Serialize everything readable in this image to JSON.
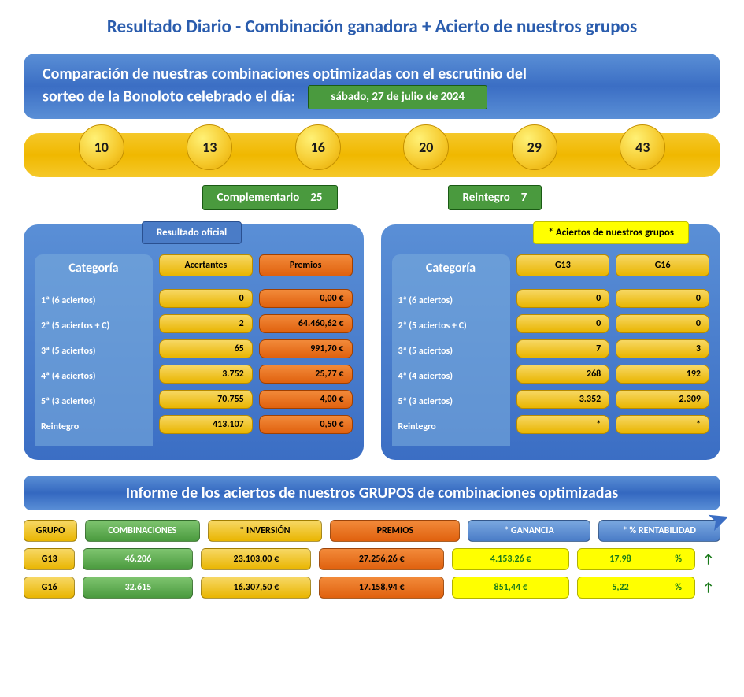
{
  "title": "Resultado Diario - Combinación ganadora + Acierto de nuestros grupos",
  "banner": {
    "text_line1": "Comparación de nuestras combinaciones optimizadas con el escrutinio del",
    "text_line2": "sorteo de la Bonoloto celebrado el día:",
    "date": "sábado, 27 de julio de 2024"
  },
  "balls": [
    "10",
    "13",
    "16",
    "20",
    "29",
    "43"
  ],
  "extras": {
    "comp_label": "Complementario",
    "comp_value": "25",
    "reint_label": "Reintegro",
    "reint_value": "7"
  },
  "panel_left": {
    "tab": "Resultado oficial",
    "cat_header": "Categoría",
    "col1": "Acertantes",
    "col2": "Premios",
    "rows": [
      {
        "cat": "1ª  (6 aciertos)",
        "c1": "0",
        "c2": "0,00 €"
      },
      {
        "cat": "2ª  (5 aciertos + C)",
        "c1": "2",
        "c2": "64.460,62 €"
      },
      {
        "cat": "3ª  (5 aciertos)",
        "c1": "65",
        "c2": "991,70 €"
      },
      {
        "cat": "4ª  (4 aciertos)",
        "c1": "3.752",
        "c2": "25,77 €"
      },
      {
        "cat": "5ª  (3 aciertos)",
        "c1": "70.755",
        "c2": "4,00 €"
      },
      {
        "cat": "Reintegro",
        "c1": "413.107",
        "c2": "0,50 €"
      }
    ]
  },
  "panel_right": {
    "tab": "* Aciertos de nuestros grupos",
    "cat_header": "Categoría",
    "col1": "G13",
    "col2": "G16",
    "rows": [
      {
        "cat": "1ª  (6 aciertos)",
        "c1": "0",
        "c2": "0"
      },
      {
        "cat": "2ª  (5 aciertos + C)",
        "c1": "0",
        "c2": "0"
      },
      {
        "cat": "3ª  (5 aciertos)",
        "c1": "7",
        "c2": "3"
      },
      {
        "cat": "4ª  (4 aciertos)",
        "c1": "268",
        "c2": "192"
      },
      {
        "cat": "5ª  (3 aciertos)",
        "c1": "3.352",
        "c2": "2.309"
      },
      {
        "cat": "Reintegro",
        "c1": "*",
        "c2": "*"
      }
    ]
  },
  "report": {
    "title": "Informe de los aciertos de nuestros GRUPOS de combinaciones optimizadas",
    "headers": {
      "grupo": "GRUPO",
      "comb": "COMBINACIONES",
      "inv": "* INVERSIÓN",
      "prem": "PREMIOS",
      "gan": "* GANANCIA",
      "rent": "* % RENTABILIDAD"
    },
    "rows": [
      {
        "grupo": "G13",
        "comb": "46.206",
        "inv": "23.103,00 €",
        "prem": "27.256,26 €",
        "gan": "4.153,26 €",
        "rent": "17,98",
        "pct": "%",
        "arrow": "↑"
      },
      {
        "grupo": "G16",
        "comb": "32.615",
        "inv": "16.307,50 €",
        "prem": "17.158,94 €",
        "gan": "851,44 €",
        "rent": "5,22",
        "pct": "%",
        "arrow": "↑"
      }
    ]
  },
  "colors": {
    "blue": "#3b6ec4",
    "yellow": "#f0b800",
    "green": "#4a9a3e",
    "orange": "#e0610e",
    "neon": "#ffff00"
  }
}
